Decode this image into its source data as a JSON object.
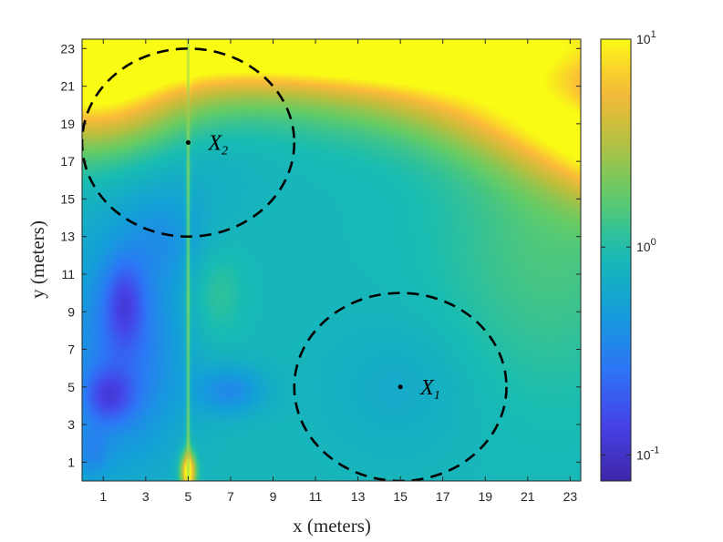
{
  "chart_data": {
    "type": "heatmap",
    "title": "",
    "xlabel": "x (meters)",
    "ylabel": "y (meters)",
    "xlim": [
      0,
      23.5
    ],
    "ylim": [
      0,
      23.5
    ],
    "xticks": [
      1,
      3,
      5,
      7,
      9,
      11,
      13,
      15,
      17,
      19,
      21,
      23
    ],
    "yticks": [
      1,
      3,
      5,
      7,
      9,
      11,
      13,
      15,
      17,
      19,
      21,
      23
    ],
    "colorbar": {
      "scale": "log",
      "range": [
        0.075,
        10
      ],
      "colormap": "parula",
      "ticks": [
        {
          "value": 10,
          "base": "10",
          "exp": "1"
        },
        {
          "value": 1,
          "base": "10",
          "exp": "0"
        },
        {
          "value": 0.1,
          "base": "10",
          "exp": "-1"
        }
      ]
    },
    "features": {
      "vertical_line_x": 5,
      "hot_spot": {
        "x": 5,
        "y": 0.5
      }
    },
    "annotations": [
      {
        "label": "X",
        "subscript": "1",
        "point": [
          15,
          5
        ],
        "radius": 5
      },
      {
        "label": "X",
        "subscript": "2",
        "point": [
          5,
          18
        ],
        "radius": 5
      }
    ],
    "grid": false
  },
  "colors": {
    "circle": "#000000",
    "axis": "#262626",
    "colormap_low": "#3e26a8",
    "colormap_mid": "#20b2aa",
    "colormap_high": "#f9fb15"
  }
}
